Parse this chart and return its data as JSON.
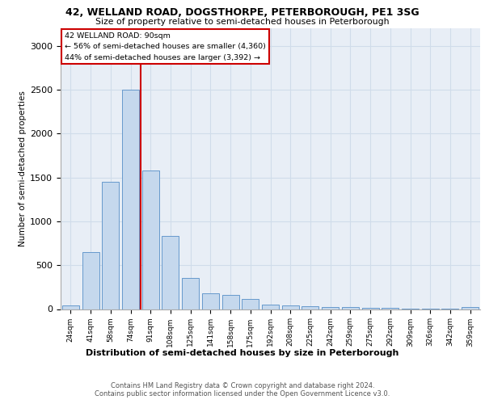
{
  "title1": "42, WELLAND ROAD, DOGSTHORPE, PETERBOROUGH, PE1 3SG",
  "title2": "Size of property relative to semi-detached houses in Peterborough",
  "dist_label": "Distribution of semi-detached houses by size in Peterborough",
  "ylabel": "Number of semi-detached properties",
  "categories": [
    "24sqm",
    "41sqm",
    "58sqm",
    "74sqm",
    "91sqm",
    "108sqm",
    "125sqm",
    "141sqm",
    "158sqm",
    "175sqm",
    "192sqm",
    "208sqm",
    "225sqm",
    "242sqm",
    "259sqm",
    "275sqm",
    "292sqm",
    "309sqm",
    "326sqm",
    "342sqm",
    "359sqm"
  ],
  "values": [
    40,
    650,
    1450,
    2500,
    1580,
    830,
    350,
    175,
    160,
    115,
    55,
    40,
    30,
    25,
    20,
    15,
    10,
    5,
    5,
    5,
    20
  ],
  "bar_color": "#c5d8ed",
  "bar_edge_color": "#6699cc",
  "grid_color": "#d0dcea",
  "background_color": "#e8eef6",
  "property_bin_index": 4,
  "annotation_title": "42 WELLAND ROAD: 90sqm",
  "annotation_line1": "← 56% of semi-detached houses are smaller (4,360)",
  "annotation_line2": "44% of semi-detached houses are larger (3,392) →",
  "vline_color": "#cc0000",
  "annotation_box_edge": "#cc0000",
  "footer1": "Contains HM Land Registry data © Crown copyright and database right 2024.",
  "footer2": "Contains public sector information licensed under the Open Government Licence v3.0.",
  "ylim": [
    0,
    3200
  ],
  "yticks": [
    0,
    500,
    1000,
    1500,
    2000,
    2500,
    3000
  ]
}
